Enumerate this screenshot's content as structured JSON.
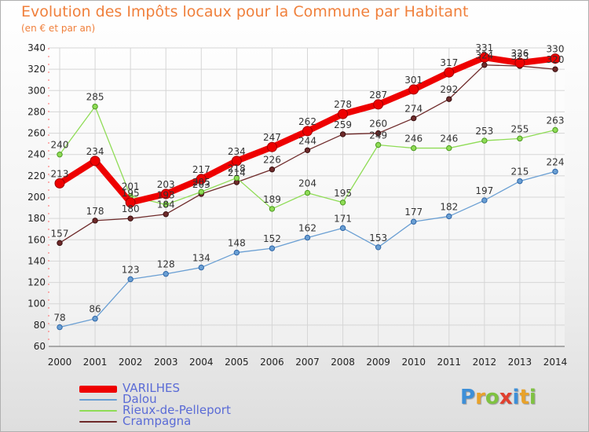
{
  "header": {
    "title": "Evolution des Impôts locaux pour la Commune par Habitant",
    "subtitle": "(en € et par an)"
  },
  "legend": {
    "items": [
      "VARILHES",
      "Dalou",
      "Rieux-de-Pelleport",
      "Crampagna"
    ]
  },
  "logo": {
    "letters": [
      "P",
      "r",
      "o",
      "x",
      "i",
      "t",
      "i"
    ]
  },
  "colors": {
    "title": "#f0803c",
    "legend_text": "#5a6bd6",
    "VARILHES": "#ee0000",
    "Dalou": "#6a9fd3",
    "Rieux-de-Pelleport": "#8fdc56",
    "Crampagna": "#6e2a2a"
  },
  "chart_data": {
    "type": "line",
    "title": "Evolution des Impôts locaux pour la Commune par Habitant",
    "subtitle": "(en € et par an)",
    "xlabel": "",
    "ylabel": "",
    "x": [
      "2000",
      "2001",
      "2002",
      "2003",
      "2004",
      "2005",
      "2006",
      "2007",
      "2008",
      "2009",
      "2010",
      "2011",
      "2012",
      "2013",
      "2014"
    ],
    "ylim": [
      60,
      340
    ],
    "yticks": [
      60,
      80,
      100,
      120,
      140,
      160,
      180,
      200,
      220,
      240,
      260,
      280,
      300,
      320,
      340
    ],
    "grid": true,
    "legend_position": "bottom-left",
    "series": [
      {
        "name": "Crampagna",
        "values": [
          157,
          178,
          180,
          184,
          203,
          214,
          226,
          244,
          259,
          260,
          274,
          292,
          324,
          323,
          320
        ],
        "labels": [
          "157",
          "178",
          "180",
          "184",
          "203",
          "214",
          "226",
          "244",
          "259",
          "260",
          "274",
          "292",
          "324",
          "323",
          "320"
        ]
      },
      {
        "name": "Rieux-de-Pelleport",
        "values": [
          240,
          285,
          201,
          193,
          205,
          218,
          189,
          204,
          195,
          249,
          246,
          246,
          253,
          255,
          263
        ],
        "labels": [
          "240",
          "285",
          "201",
          "193",
          "205",
          "218",
          "189",
          "204",
          "195",
          "249",
          "246",
          "246",
          "253",
          "255",
          "263"
        ]
      },
      {
        "name": "Dalou",
        "values": [
          78,
          86,
          123,
          128,
          134,
          148,
          152,
          162,
          171,
          153,
          177,
          182,
          197,
          215,
          224
        ],
        "labels": [
          "78",
          "86",
          "123",
          "128",
          "134",
          "148",
          "152",
          "162",
          "171",
          "153",
          "177",
          "182",
          "197",
          "215",
          "224"
        ]
      },
      {
        "name": "VARILHES",
        "values": [
          213,
          234,
          195,
          203,
          217,
          234,
          247,
          262,
          278,
          287,
          301,
          317,
          331,
          326,
          330
        ],
        "labels": [
          "213",
          "234",
          "195",
          "203",
          "217",
          "234",
          "247",
          "262",
          "278",
          "287",
          "301",
          "317",
          "331",
          "326",
          "330"
        ]
      }
    ]
  }
}
